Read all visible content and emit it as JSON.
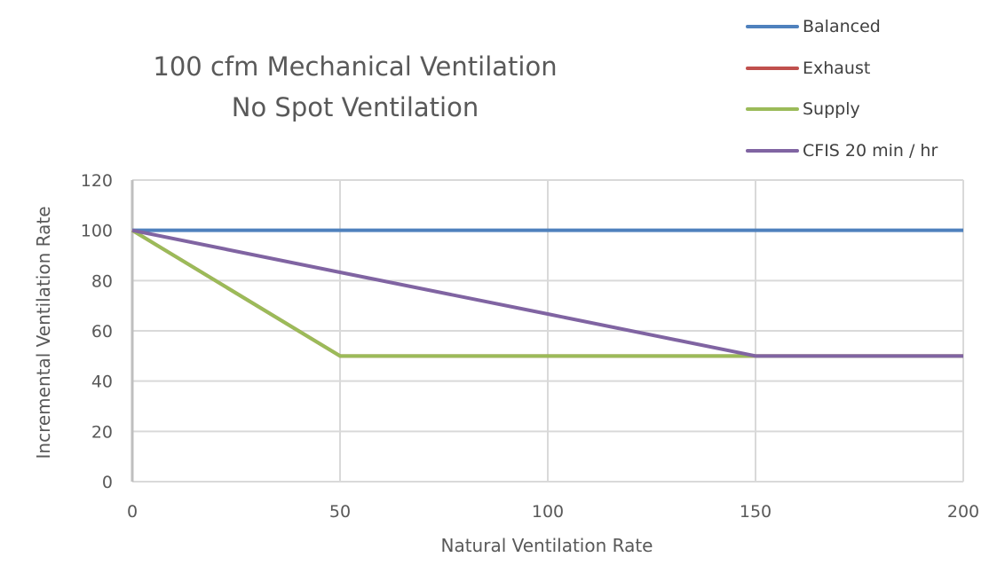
{
  "chart_data": {
    "type": "line",
    "title": "100 cfm Mechanical Ventilation",
    "subtitle": "No Spot Ventilation",
    "xlabel": "Natural Ventilation Rate",
    "ylabel": "Incremental Ventilation Rate",
    "xlim": [
      0,
      200
    ],
    "ylim": [
      0,
      120
    ],
    "xticks": [
      "0",
      "50",
      "100",
      "150",
      "200"
    ],
    "yticks": [
      "0",
      "20",
      "40",
      "60",
      "80",
      "100",
      "120"
    ],
    "grid": true,
    "legend_position": "top-right",
    "series": [
      {
        "name": "Balanced",
        "color": "#4f81bd",
        "x": [
          0,
          50,
          100,
          150,
          200
        ],
        "y": [
          100,
          100,
          100,
          100,
          100
        ]
      },
      {
        "name": "Exhaust",
        "color": "#c0504d",
        "x": [
          0,
          50,
          100,
          150,
          200
        ],
        "y": [
          100,
          50,
          50,
          50,
          50
        ]
      },
      {
        "name": "Supply",
        "color": "#9bbb59",
        "x": [
          0,
          50,
          100,
          150,
          200
        ],
        "y": [
          100,
          50,
          50,
          50,
          50
        ]
      },
      {
        "name": "CFIS 20 min / hr",
        "color": "#8064a2",
        "x": [
          0,
          50,
          100,
          150,
          200
        ],
        "y": [
          100,
          83.3,
          66.7,
          50,
          50
        ]
      }
    ]
  }
}
